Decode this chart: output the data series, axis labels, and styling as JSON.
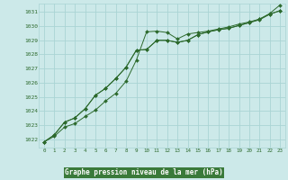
{
  "title": "Graphe pression niveau de la mer (hPa)",
  "background_color": "#cce9e9",
  "grid_color": "#aad4d4",
  "line_color": "#2d6a2d",
  "label_bg_color": "#3a7a3a",
  "label_text_color": "#ffffff",
  "xlim": [
    -0.5,
    23.5
  ],
  "ylim": [
    1021.4,
    1031.6
  ],
  "yticks": [
    1022,
    1023,
    1024,
    1025,
    1026,
    1027,
    1028,
    1029,
    1030,
    1031
  ],
  "xticks": [
    0,
    1,
    2,
    3,
    4,
    5,
    6,
    7,
    8,
    9,
    10,
    11,
    12,
    13,
    14,
    15,
    16,
    17,
    18,
    19,
    20,
    21,
    22,
    23
  ],
  "hours": [
    0,
    1,
    2,
    3,
    4,
    5,
    6,
    7,
    8,
    9,
    10,
    11,
    12,
    13,
    14,
    15,
    16,
    17,
    18,
    19,
    20,
    21,
    22,
    23
  ],
  "line1": [
    1021.8,
    1022.2,
    1022.85,
    1023.1,
    1023.6,
    1024.05,
    1024.7,
    1025.25,
    1026.1,
    1027.6,
    1029.6,
    1029.65,
    1029.55,
    1029.1,
    1029.45,
    1029.55,
    1029.65,
    1029.8,
    1029.95,
    1030.15,
    1030.3,
    1030.5,
    1030.85,
    1031.1
  ],
  "line2": [
    1021.8,
    1022.3,
    1023.2,
    1023.5,
    1024.15,
    1025.1,
    1025.6,
    1026.3,
    1027.1,
    1028.3,
    1028.35,
    1029.0,
    1029.0,
    1028.85,
    1029.0,
    1029.4,
    1029.6,
    1029.75,
    1029.85,
    1030.05,
    1030.25,
    1030.45,
    1030.85,
    1031.1
  ],
  "line3": [
    1021.8,
    1022.3,
    1023.2,
    1023.5,
    1024.15,
    1025.1,
    1025.6,
    1026.3,
    1027.1,
    1028.3,
    1028.35,
    1029.0,
    1029.0,
    1028.85,
    1029.0,
    1029.4,
    1029.6,
    1029.75,
    1029.85,
    1030.05,
    1030.25,
    1030.5,
    1030.9,
    1031.5
  ]
}
